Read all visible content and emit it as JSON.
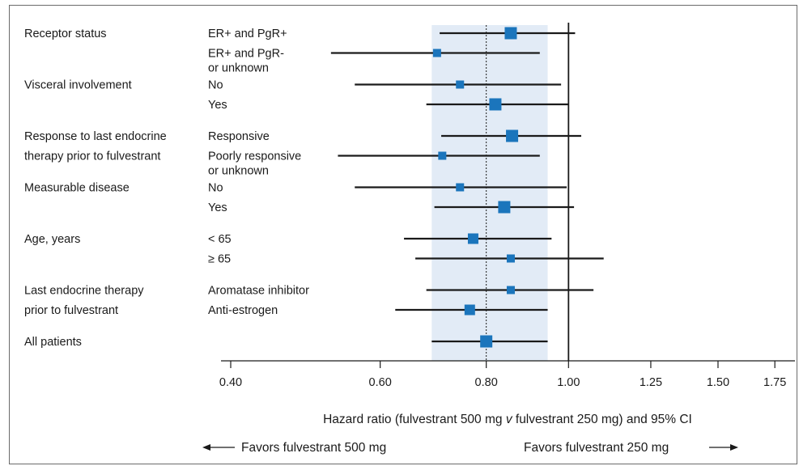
{
  "chart_data": {
    "type": "forest",
    "x_scale": "log",
    "xlim": [
      0.4,
      1.8
    ],
    "x_ticks": [
      0.4,
      0.6,
      0.8,
      1.0,
      1.25,
      1.5,
      1.75
    ],
    "x_tick_labels": [
      "0.40",
      "0.60",
      "0.80",
      "1.00",
      "1.25",
      "1.50",
      "1.75"
    ],
    "xlabel_parts": [
      "Hazard ratio (fulvestrant 500 mg ",
      "v",
      " fulvestrant 250 mg) and 95% CI"
    ],
    "reference_line": 1.0,
    "overall_line": 0.8,
    "shaded_band": [
      0.69,
      0.945
    ],
    "favors_left": "Favors fulvestrant 500 mg",
    "favors_right": "Favors fulvestrant 250 mg",
    "rows": [
      {
        "group": "Receptor status",
        "subgroup": [
          "ER+ and PgR+"
        ],
        "hr": 0.855,
        "lo": 0.705,
        "hi": 1.018,
        "marker": "large"
      },
      {
        "group": "",
        "subgroup": [
          "ER+ and PgR-",
          "or unknown"
        ],
        "hr": 0.7,
        "lo": 0.525,
        "hi": 0.925,
        "marker": "small"
      },
      {
        "group": "Visceral involvement",
        "subgroup": [
          "No"
        ],
        "hr": 0.745,
        "lo": 0.56,
        "hi": 0.98,
        "marker": "small"
      },
      {
        "group": "",
        "subgroup": [
          "Yes"
        ],
        "hr": 0.82,
        "lo": 0.68,
        "hi": 1.0,
        "marker": "large"
      },
      {
        "group": "Response to last endocrine",
        "subgroup": [
          "Responsive"
        ],
        "hr": 0.858,
        "lo": 0.708,
        "hi": 1.035,
        "marker": "large"
      },
      {
        "group": "therapy prior to fulvestrant",
        "subgroup": [
          "Poorly responsive",
          "or unknown"
        ],
        "hr": 0.71,
        "lo": 0.535,
        "hi": 0.925,
        "marker": "small"
      },
      {
        "group": "Measurable disease",
        "subgroup": [
          "No"
        ],
        "hr": 0.745,
        "lo": 0.56,
        "hi": 0.995,
        "marker": "small"
      },
      {
        "group": "",
        "subgroup": [
          "Yes"
        ],
        "hr": 0.84,
        "lo": 0.695,
        "hi": 1.015,
        "marker": "large"
      },
      {
        "group": "Age, years",
        "subgroup": [
          "< 65"
        ],
        "hr": 0.772,
        "lo": 0.64,
        "hi": 0.955,
        "marker": "medium"
      },
      {
        "group": "",
        "subgroup": [
          "≥ 65"
        ],
        "hr": 0.855,
        "lo": 0.66,
        "hi": 1.1,
        "marker": "small"
      },
      {
        "group": "Last endocrine therapy",
        "subgroup": [
          "Aromatase inhibitor"
        ],
        "hr": 0.855,
        "lo": 0.68,
        "hi": 1.07,
        "marker": "small"
      },
      {
        "group": "prior to fulvestrant",
        "subgroup": [
          "Anti-estrogen"
        ],
        "hr": 0.765,
        "lo": 0.625,
        "hi": 0.945,
        "marker": "medium"
      },
      {
        "group": "All patients",
        "subgroup": [
          ""
        ],
        "hr": 0.8,
        "lo": 0.69,
        "hi": 0.945,
        "marker": "large"
      }
    ]
  },
  "colors": {
    "marker": "#1b75bc",
    "band": "#e2ebf6",
    "line": "#1a1a1a",
    "frame": "#6a6a6a"
  }
}
